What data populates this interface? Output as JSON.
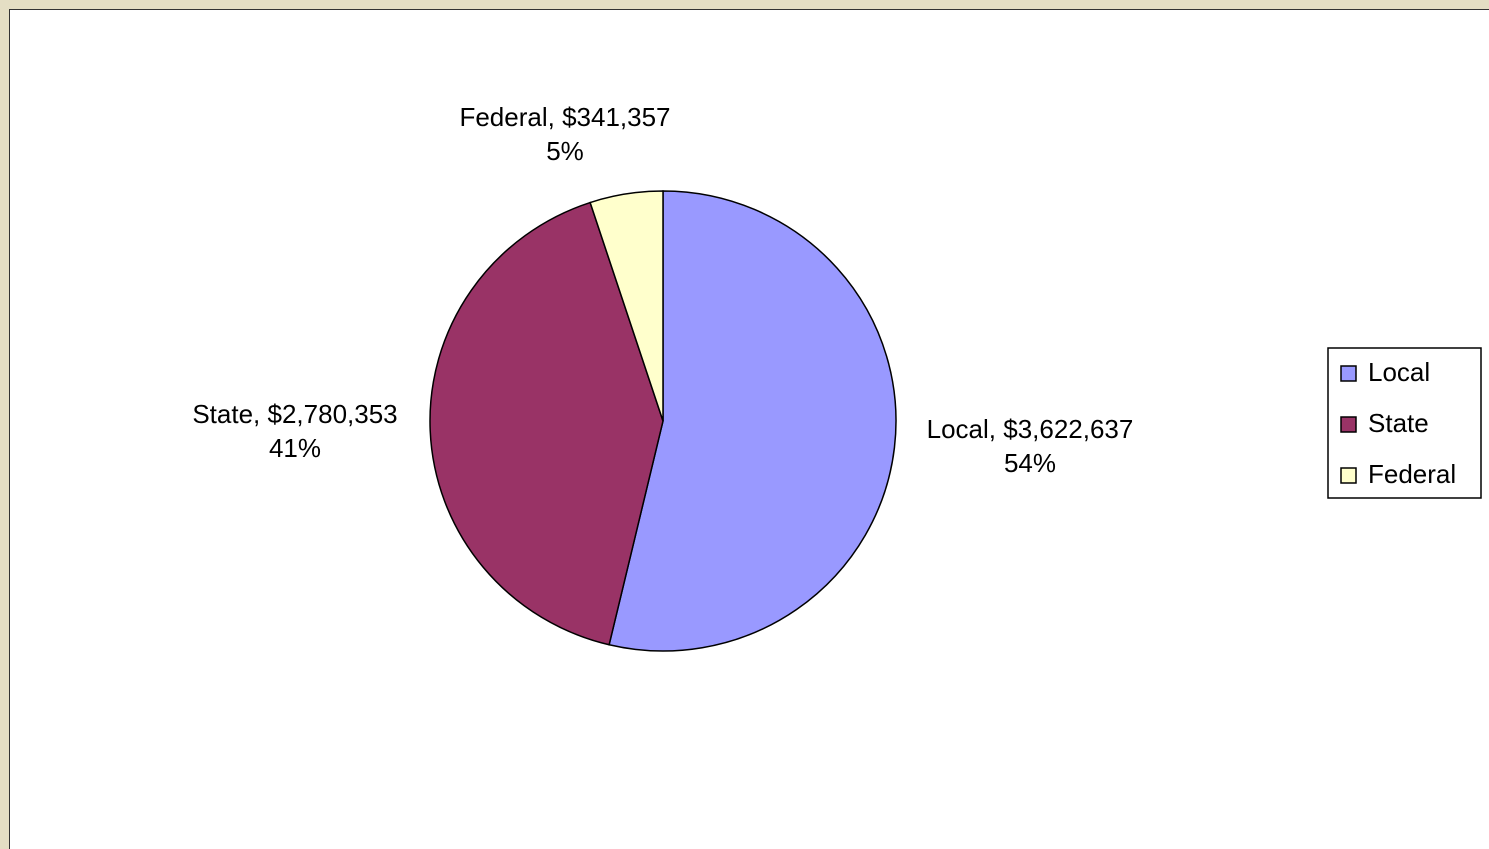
{
  "chart_data": {
    "type": "pie",
    "slices": [
      {
        "name": "Local",
        "value": 3622637,
        "value_label": "$3,622,637",
        "percent_label": "54%",
        "color": "#9999ff"
      },
      {
        "name": "State",
        "value": 2780353,
        "value_label": "$2,780,353",
        "percent_label": "41%",
        "color": "#993366"
      },
      {
        "name": "Federal",
        "value": 341357,
        "value_label": "$341,357",
        "percent_label": "5%",
        "color": "#ffffcc"
      }
    ],
    "legend": {
      "placement": "right",
      "entries": [
        "Local",
        "State",
        "Federal"
      ]
    },
    "start_angle": "12 o'clock, clockwise"
  },
  "background_color": "#e4dec4"
}
